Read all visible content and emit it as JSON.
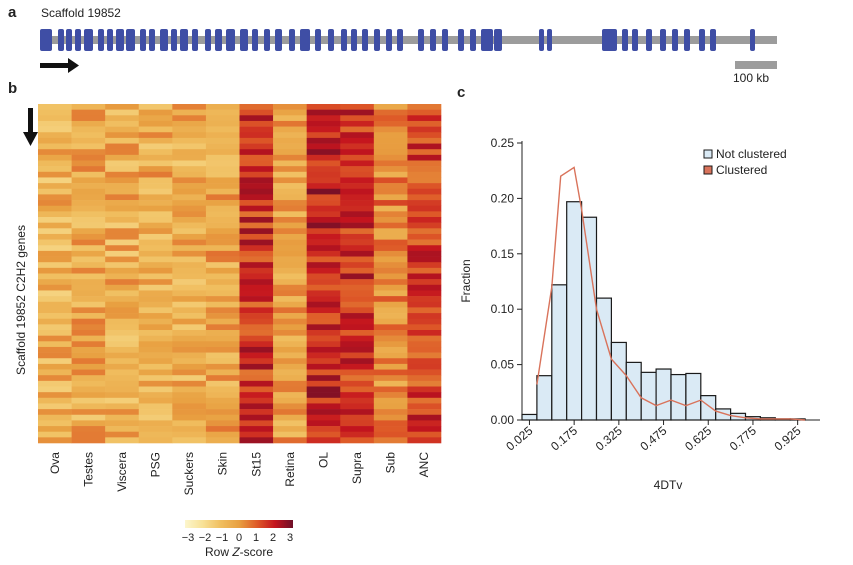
{
  "panel_a": {
    "label": "a",
    "title": "Scaffold 19852",
    "scale_bar_label": "100 kb",
    "gene_color": "#3f4ea5",
    "scaffold_color": "#9c9c9c"
  },
  "panel_b": {
    "label": "b",
    "y_label": "Scaffold 19852 C2H2 genes",
    "tissues": [
      "Ova",
      "Testes",
      "Viscera",
      "PSG",
      "Suckers",
      "Skin",
      "St15",
      "Retina",
      "OL",
      "Supra",
      "Sub",
      "ANC"
    ],
    "colorbar": {
      "title_prefix": "Row ",
      "title_italic": "Z",
      "title_suffix": "-score",
      "ticks": [
        "−3",
        "−2",
        "−1",
        "0",
        "1",
        "2",
        "3"
      ],
      "min": -3,
      "max": 3
    }
  },
  "panel_c": {
    "label": "c",
    "chart_data": {
      "type": "bar",
      "xlabel": "4DTv",
      "ylabel": "Fraction",
      "x_ticks": [
        0.025,
        0.175,
        0.325,
        0.475,
        0.625,
        0.775,
        0.925
      ],
      "x_tick_labels": [
        "0.025",
        "0.175",
        "0.325",
        "0.475",
        "0.625",
        "0.775",
        "0.925"
      ],
      "y_ticks": [
        0,
        0.05,
        0.1,
        0.15,
        0.2,
        0.25
      ],
      "y_tick_labels": [
        "0.00",
        "0.05",
        "0.10",
        "0.15",
        "0.20",
        "0.25"
      ],
      "xlim": [
        0.0,
        1.0
      ],
      "ylim": [
        0,
        0.25
      ],
      "bin_width": 0.05,
      "bin_starts": [
        0.0,
        0.05,
        0.1,
        0.15,
        0.2,
        0.25,
        0.3,
        0.35,
        0.4,
        0.45,
        0.5,
        0.55,
        0.6,
        0.65,
        0.7,
        0.75,
        0.8,
        0.85,
        0.9,
        0.95
      ],
      "legend_position": "top-right",
      "series": [
        {
          "name": "Not clustered",
          "kind": "histogram",
          "color": "#daeaf5",
          "values": [
            0.005,
            0.04,
            0.122,
            0.197,
            0.183,
            0.11,
            0.07,
            0.052,
            0.043,
            0.046,
            0.041,
            0.042,
            0.022,
            0.01,
            0.006,
            0.003,
            0.002,
            0.001,
            0.001,
            0.0
          ]
        },
        {
          "name": "Clustered",
          "kind": "line",
          "color": "#d9735b",
          "x": [
            0.05,
            0.1,
            0.13,
            0.175,
            0.2,
            0.25,
            0.3,
            0.35,
            0.4,
            0.45,
            0.5,
            0.55,
            0.6,
            0.65,
            0.7,
            0.75,
            0.8,
            0.85,
            0.9,
            0.95
          ],
          "values": [
            0.032,
            0.12,
            0.22,
            0.228,
            0.19,
            0.1,
            0.055,
            0.04,
            0.02,
            0.013,
            0.018,
            0.013,
            0.018,
            0.008,
            0.004,
            0.002,
            0.001,
            0.001,
            0.001,
            0.0
          ]
        }
      ]
    }
  }
}
